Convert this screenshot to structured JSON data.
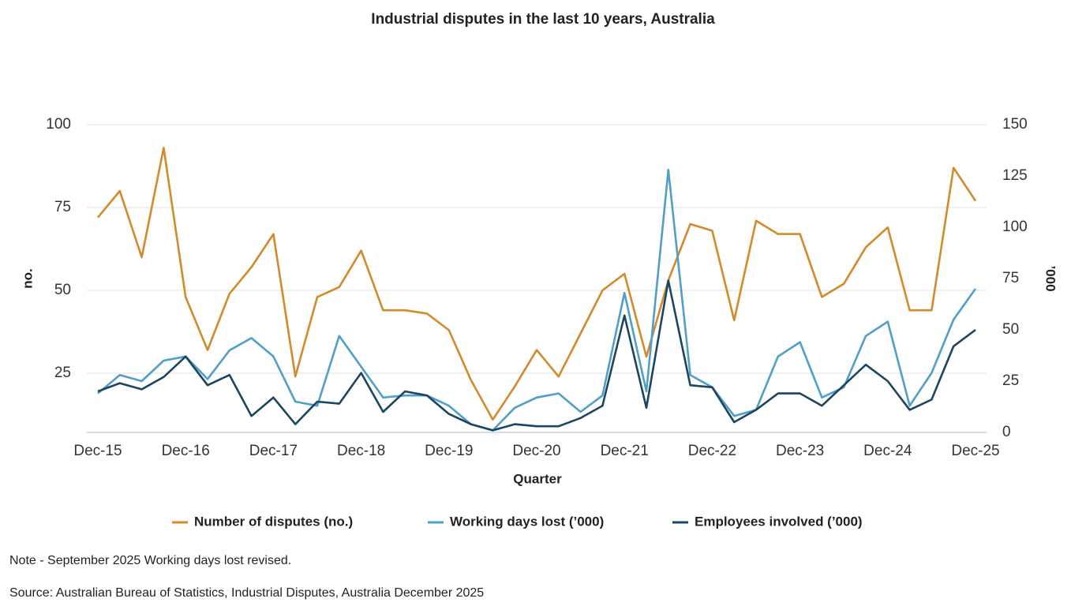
{
  "chart_data": {
    "type": "line",
    "title": "Industrial disputes in the last 10 years, Australia",
    "x_label": "Quarter",
    "y_label": "no.",
    "y2_label": "’000",
    "note": "Note - September 2025 Working days lost revised.",
    "source": "Source: Australian Bureau of Statistics, Industrial Disputes, Australia December 2025",
    "categories": [
      "Dec-15",
      null,
      null,
      null,
      "Dec-16",
      null,
      null,
      null,
      "Dec-17",
      null,
      null,
      null,
      "Dec-18",
      null,
      null,
      null,
      "Dec-19",
      null,
      null,
      null,
      "Dec-20",
      null,
      null,
      null,
      "Dec-21",
      null,
      null,
      null,
      "Dec-22",
      null,
      null,
      null,
      "Dec-23",
      null,
      null,
      null,
      "Dec-24",
      null,
      null,
      null,
      "Dec-25"
    ],
    "ylim": [
      7.14,
      100
    ],
    "yticks": [
      25,
      50,
      75,
      100
    ],
    "y2lim": [
      0,
      150
    ],
    "y2ticks": [
      0,
      25,
      50,
      75,
      100,
      125,
      150
    ],
    "grid": true,
    "legend": "bottom",
    "series": [
      {
        "name": "Number of disputes (no.)",
        "color": "#d4892b",
        "values": [
          72,
          80,
          60,
          93,
          48,
          32,
          49,
          57,
          67,
          24,
          48,
          51,
          62,
          44,
          44,
          43,
          38,
          23,
          11,
          21,
          32,
          24,
          37,
          50,
          55,
          30,
          53,
          70,
          68,
          41,
          71,
          67,
          67,
          48,
          52,
          63,
          69,
          44,
          44,
          87,
          77
        ]
      },
      {
        "name": "Working days lost (’000)",
        "color": "#4f9fc8",
        "axis": "y2",
        "values": [
          19,
          28,
          25,
          35,
          37,
          26,
          40,
          46,
          37,
          15,
          13,
          47,
          32,
          17,
          18,
          18,
          13,
          4,
          1,
          12,
          17,
          19,
          10,
          18,
          68,
          20,
          128,
          28,
          22,
          8,
          11,
          37,
          44,
          17,
          22,
          47,
          54,
          13,
          29,
          55,
          70
        ]
      },
      {
        "name": "Employees involved (’000)",
        "color": "#1b4561",
        "axis": "y2",
        "values": [
          20,
          24,
          21,
          27,
          37,
          23,
          28,
          8,
          17,
          4,
          15,
          14,
          29,
          10,
          20,
          18,
          9,
          4,
          1,
          4,
          3,
          3,
          7,
          13,
          57,
          12,
          74,
          23,
          22,
          5,
          11,
          19,
          19,
          13,
          23,
          33,
          25,
          11,
          16,
          42,
          50
        ]
      }
    ]
  }
}
